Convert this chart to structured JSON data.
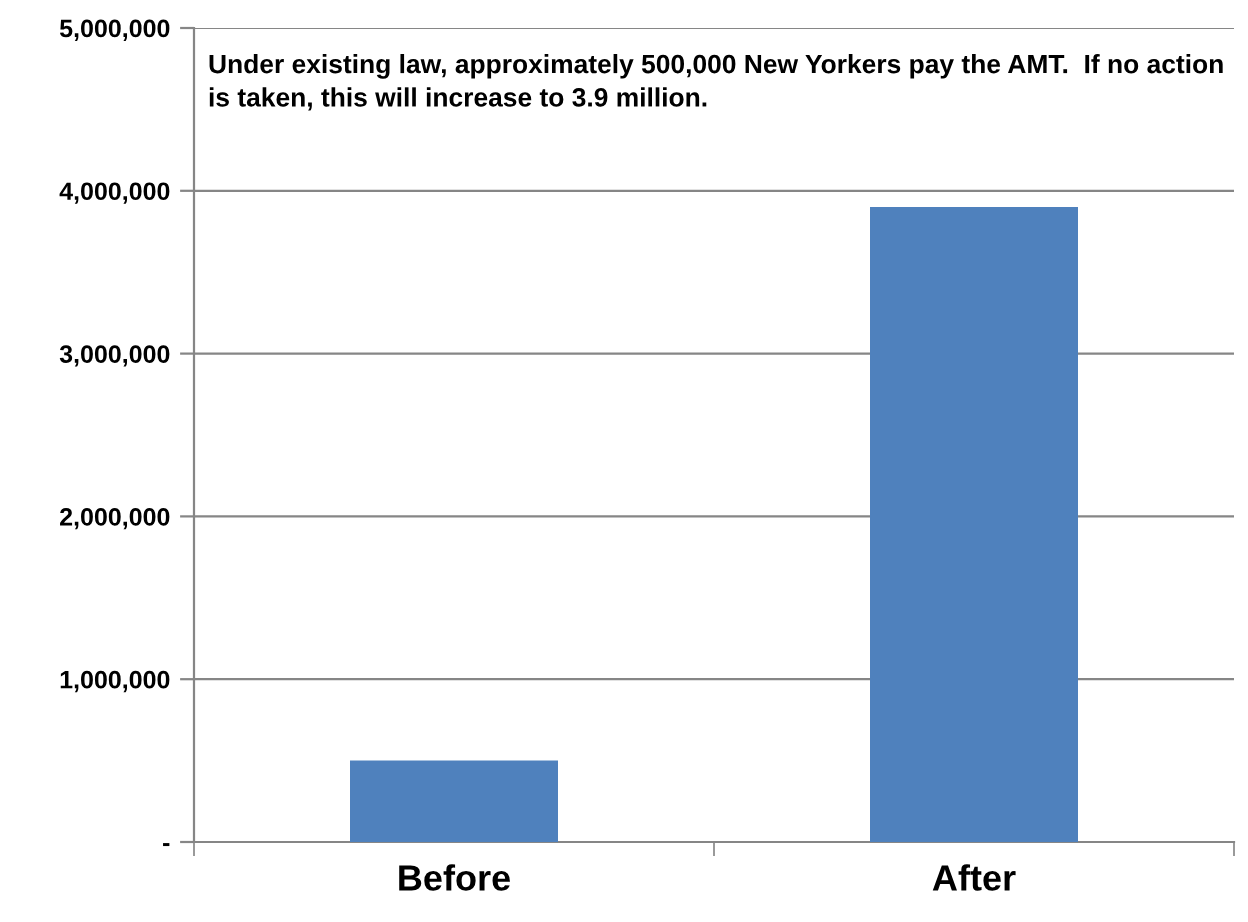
{
  "chart_data": {
    "type": "bar",
    "categories": [
      "Before",
      "After"
    ],
    "values": [
      500000,
      3900000
    ],
    "color": "#4f81bd",
    "ylim": [
      0,
      5000000
    ],
    "yticks": [
      {
        "value": 0,
        "label": "-"
      },
      {
        "value": 1000000,
        "label": "1,000,000"
      },
      {
        "value": 2000000,
        "label": "2,000,000"
      },
      {
        "value": 3000000,
        "label": "3,000,000"
      },
      {
        "value": 4000000,
        "label": "4,000,000"
      },
      {
        "value": 5000000,
        "label": "5,000,000"
      }
    ],
    "grid": "y",
    "annotations": [
      "Under existing law, approximately 500,000 New Yorkers pay the AMT.  If no action is taken, this will increase to 3.9 million."
    ]
  }
}
